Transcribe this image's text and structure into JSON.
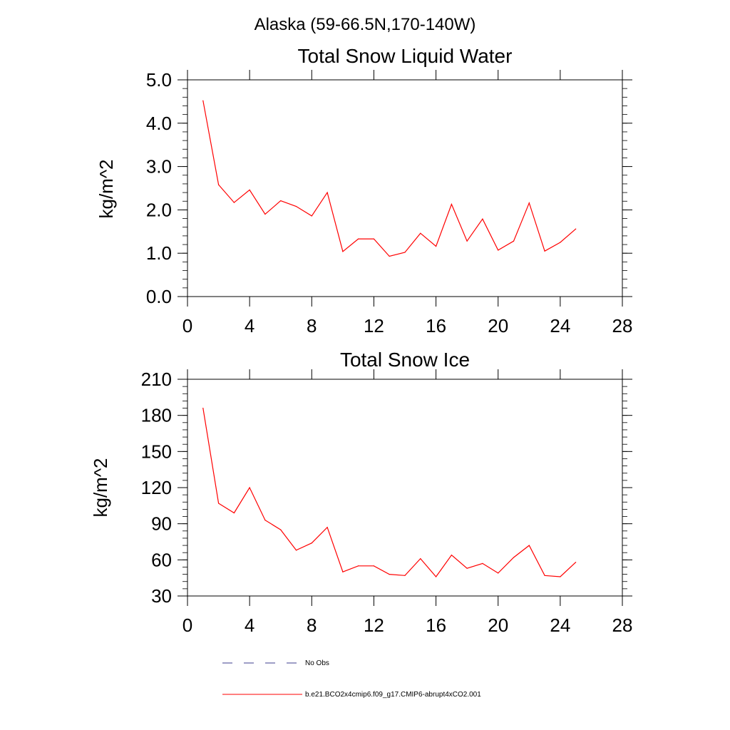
{
  "suptitle": "Alaska (59-66.5N,170-140W)",
  "colors": {
    "model_series": "#ff0000",
    "obs_series": "#3c3c8c",
    "axes": "#000000"
  },
  "legend": {
    "entries": [
      {
        "label": "No Obs",
        "style": "dashed",
        "color": "#3c3c8c"
      },
      {
        "label": "b.e21.BCO2x4cmip6.f09_g17.CMIP6-abrupt4xCO2.001",
        "style": "solid",
        "color": "#ff0000"
      }
    ]
  },
  "chart_data": [
    {
      "type": "line",
      "title": "Total Snow Liquid Water",
      "xlabel": "",
      "ylabel": "kg/m^2",
      "xlim": [
        0,
        28
      ],
      "ylim": [
        0,
        5
      ],
      "xticks": [
        0,
        4,
        8,
        12,
        16,
        20,
        24,
        28
      ],
      "xtick_labels": [
        "0",
        "4",
        "8",
        "12",
        "16",
        "20",
        "24",
        "28"
      ],
      "yticks": [
        0,
        1,
        2,
        3,
        4,
        5
      ],
      "ytick_labels": [
        "0.0",
        "1.0",
        "2.0",
        "3.0",
        "4.0",
        "5.0"
      ],
      "yminor_step": 0.2,
      "grid": false,
      "x": [
        1,
        2,
        3,
        4,
        5,
        6,
        7,
        8,
        9,
        10,
        11,
        12,
        13,
        14,
        15,
        16,
        17,
        18,
        19,
        20,
        21,
        22,
        23,
        24,
        25
      ],
      "series": [
        {
          "name": "b.e21.BCO2x4cmip6.f09_g17.CMIP6-abrupt4xCO2.001",
          "values": [
            4.52,
            2.58,
            2.17,
            2.46,
            1.9,
            2.21,
            2.08,
            1.86,
            2.4,
            1.04,
            1.33,
            1.33,
            0.93,
            1.02,
            1.46,
            1.16,
            2.13,
            1.28,
            1.79,
            1.07,
            1.28,
            2.16,
            1.05,
            1.25,
            1.56
          ]
        }
      ]
    },
    {
      "type": "line",
      "title": "Total Snow Ice",
      "xlabel": "",
      "ylabel": "kg/m^2",
      "xlim": [
        0,
        28
      ],
      "ylim": [
        30,
        210
      ],
      "xticks": [
        0,
        4,
        8,
        12,
        16,
        20,
        24,
        28
      ],
      "xtick_labels": [
        "0",
        "4",
        "8",
        "12",
        "16",
        "20",
        "24",
        "28"
      ],
      "yticks": [
        30,
        60,
        90,
        120,
        150,
        180,
        210
      ],
      "ytick_labels": [
        "30",
        "60",
        "90",
        "120",
        "150",
        "180",
        "210"
      ],
      "yminor_step": 6,
      "grid": false,
      "x": [
        1,
        2,
        3,
        4,
        5,
        6,
        7,
        8,
        9,
        10,
        11,
        12,
        13,
        14,
        15,
        16,
        17,
        18,
        19,
        20,
        21,
        22,
        23,
        24,
        25
      ],
      "series": [
        {
          "name": "b.e21.BCO2x4cmip6.f09_g17.CMIP6-abrupt4xCO2.001",
          "values": [
            186,
            107,
            99,
            120,
            93,
            85,
            68,
            74,
            87,
            50,
            55,
            55,
            48,
            47,
            61,
            46,
            64,
            53,
            57,
            49,
            62,
            72,
            47,
            46,
            58
          ]
        }
      ]
    }
  ]
}
